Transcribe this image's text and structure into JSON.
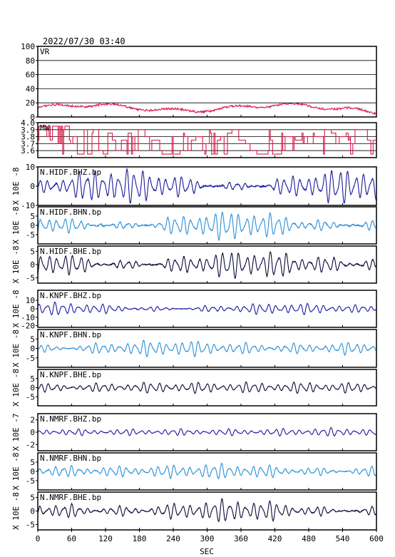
{
  "chart_data": {
    "type": "line",
    "title": "2022/07/30 03:40",
    "xlabel": "SEC",
    "xlim": [
      0,
      600
    ],
    "xticks": [
      0,
      60,
      120,
      180,
      240,
      300,
      360,
      420,
      480,
      540,
      600
    ],
    "panels": [
      {
        "name": "VR",
        "kind": "vr",
        "ylim": [
          0,
          100
        ],
        "yticks": [
          0,
          20,
          40,
          60,
          80,
          100
        ],
        "grid": true,
        "color": "#d81b4a",
        "ylabel": ""
      },
      {
        "name": "MW",
        "kind": "mw",
        "ylim": [
          3.5,
          4.0
        ],
        "yticks": [
          3.6,
          3.7,
          3.8,
          3.9,
          4.0
        ],
        "ytick_labels": [
          "3.6",
          "3.7",
          "3.8",
          "3.9",
          "4.0"
        ],
        "grid": true,
        "color": "#d81b4a",
        "ylabel": ""
      },
      {
        "name": "N.HIDF.BHZ.bp",
        "kind": "wave",
        "ylim": [
          -10,
          10
        ],
        "yticks": [
          -10,
          0,
          10
        ],
        "color": "#1a1a9c",
        "amp": 7,
        "seed": 11,
        "ylabel": "X 10E -8"
      },
      {
        "name": "N.HIDF.BHN.bp",
        "kind": "wave",
        "ylim": [
          -10,
          10
        ],
        "yticks": [
          -5,
          0,
          5
        ],
        "color": "#2a8fd6",
        "amp": 6,
        "seed": 23,
        "ylabel": "X 10E -8"
      },
      {
        "name": "N.HIDF.BHE.bp",
        "kind": "wave",
        "ylim": [
          -7,
          7
        ],
        "yticks": [
          -5,
          0,
          5
        ],
        "color": "#0a0a3a",
        "amp": 4.5,
        "seed": 37,
        "ylabel": "X 10E -8"
      },
      {
        "name": "N.KNPF.BHZ.bp",
        "kind": "wave",
        "ylim": [
          -22,
          22
        ],
        "yticks": [
          -20,
          -10,
          0,
          10
        ],
        "color": "#1a1a9c",
        "amp": 6,
        "seed": 41,
        "ylabel": "X 10E -8"
      },
      {
        "name": "N.KNPF.BHN.bp",
        "kind": "wave",
        "ylim": [
          -10,
          10
        ],
        "yticks": [
          -5,
          0,
          5
        ],
        "color": "#2a8fd6",
        "amp": 4,
        "seed": 53,
        "ylabel": "X 10E -8"
      },
      {
        "name": "N.KNPF.BHE.bp",
        "kind": "wave",
        "ylim": [
          -10,
          10
        ],
        "yticks": [
          -5,
          0,
          5
        ],
        "color": "#0a0a3a",
        "amp": 3.5,
        "seed": 67,
        "ylabel": "X 10E -8"
      },
      {
        "name": "N.NMRF.BHZ.bp",
        "kind": "wave",
        "ylim": [
          -3,
          3
        ],
        "yticks": [
          -2,
          0,
          2
        ],
        "color": "#1a1a9c",
        "amp": 0.7,
        "seed": 71,
        "ylabel": "X 10E -7"
      },
      {
        "name": "N.NMRF.BHN.bp",
        "kind": "wave",
        "ylim": [
          -10,
          10
        ],
        "yticks": [
          -5,
          0,
          5
        ],
        "color": "#2a8fd6",
        "amp": 4,
        "seed": 83,
        "ylabel": "X 10E -8"
      },
      {
        "name": "N.NMRF.BHE.bp",
        "kind": "wave",
        "ylim": [
          -7,
          7
        ],
        "yticks": [
          -5,
          0,
          5
        ],
        "color": "#0a0a3a",
        "amp": 3.5,
        "seed": 97,
        "ylabel": "X 10E -8"
      }
    ]
  }
}
